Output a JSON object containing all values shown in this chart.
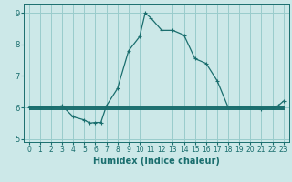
{
  "xlabel": "Humidex (Indice chaleur)",
  "bg_color": "#cce8e8",
  "grid_color": "#99cccc",
  "line_color": "#1a6e6e",
  "xlim": [
    -0.5,
    23.5
  ],
  "ylim": [
    4.9,
    9.3
  ],
  "yticks": [
    5,
    6,
    7,
    8,
    9
  ],
  "xticks": [
    0,
    1,
    2,
    3,
    4,
    5,
    6,
    7,
    8,
    9,
    10,
    11,
    12,
    13,
    14,
    15,
    16,
    17,
    18,
    19,
    20,
    21,
    22,
    23
  ],
  "main_series": [
    [
      0,
      6.0
    ],
    [
      1,
      6.0
    ],
    [
      2,
      6.0
    ],
    [
      3,
      6.05
    ],
    [
      4,
      5.7
    ],
    [
      5,
      5.6
    ],
    [
      5.5,
      5.5
    ],
    [
      6,
      5.52
    ],
    [
      6.5,
      5.52
    ],
    [
      7,
      6.05
    ],
    [
      8,
      6.6
    ],
    [
      9,
      7.8
    ],
    [
      10,
      8.25
    ],
    [
      10.5,
      9.0
    ],
    [
      11,
      8.85
    ],
    [
      12,
      8.45
    ],
    [
      13,
      8.45
    ],
    [
      14,
      8.3
    ],
    [
      15,
      7.55
    ],
    [
      16,
      7.4
    ],
    [
      17,
      6.85
    ],
    [
      18,
      6.0
    ],
    [
      19,
      6.0
    ],
    [
      20,
      6.0
    ],
    [
      21,
      5.95
    ],
    [
      22,
      6.0
    ],
    [
      22.5,
      6.05
    ],
    [
      23,
      6.2
    ]
  ],
  "flat_lines": [
    {
      "x_start": 0,
      "x_end": 23,
      "y": 5.95
    },
    {
      "x_start": 0,
      "x_end": 23,
      "y": 5.98
    },
    {
      "x_start": 0,
      "x_end": 23,
      "y": 6.0
    },
    {
      "x_start": 0,
      "x_end": 23,
      "y": 6.02
    }
  ],
  "xlabel_fontsize": 7,
  "xlabel_color": "#1a6e6e",
  "tick_fontsize": 5.5
}
